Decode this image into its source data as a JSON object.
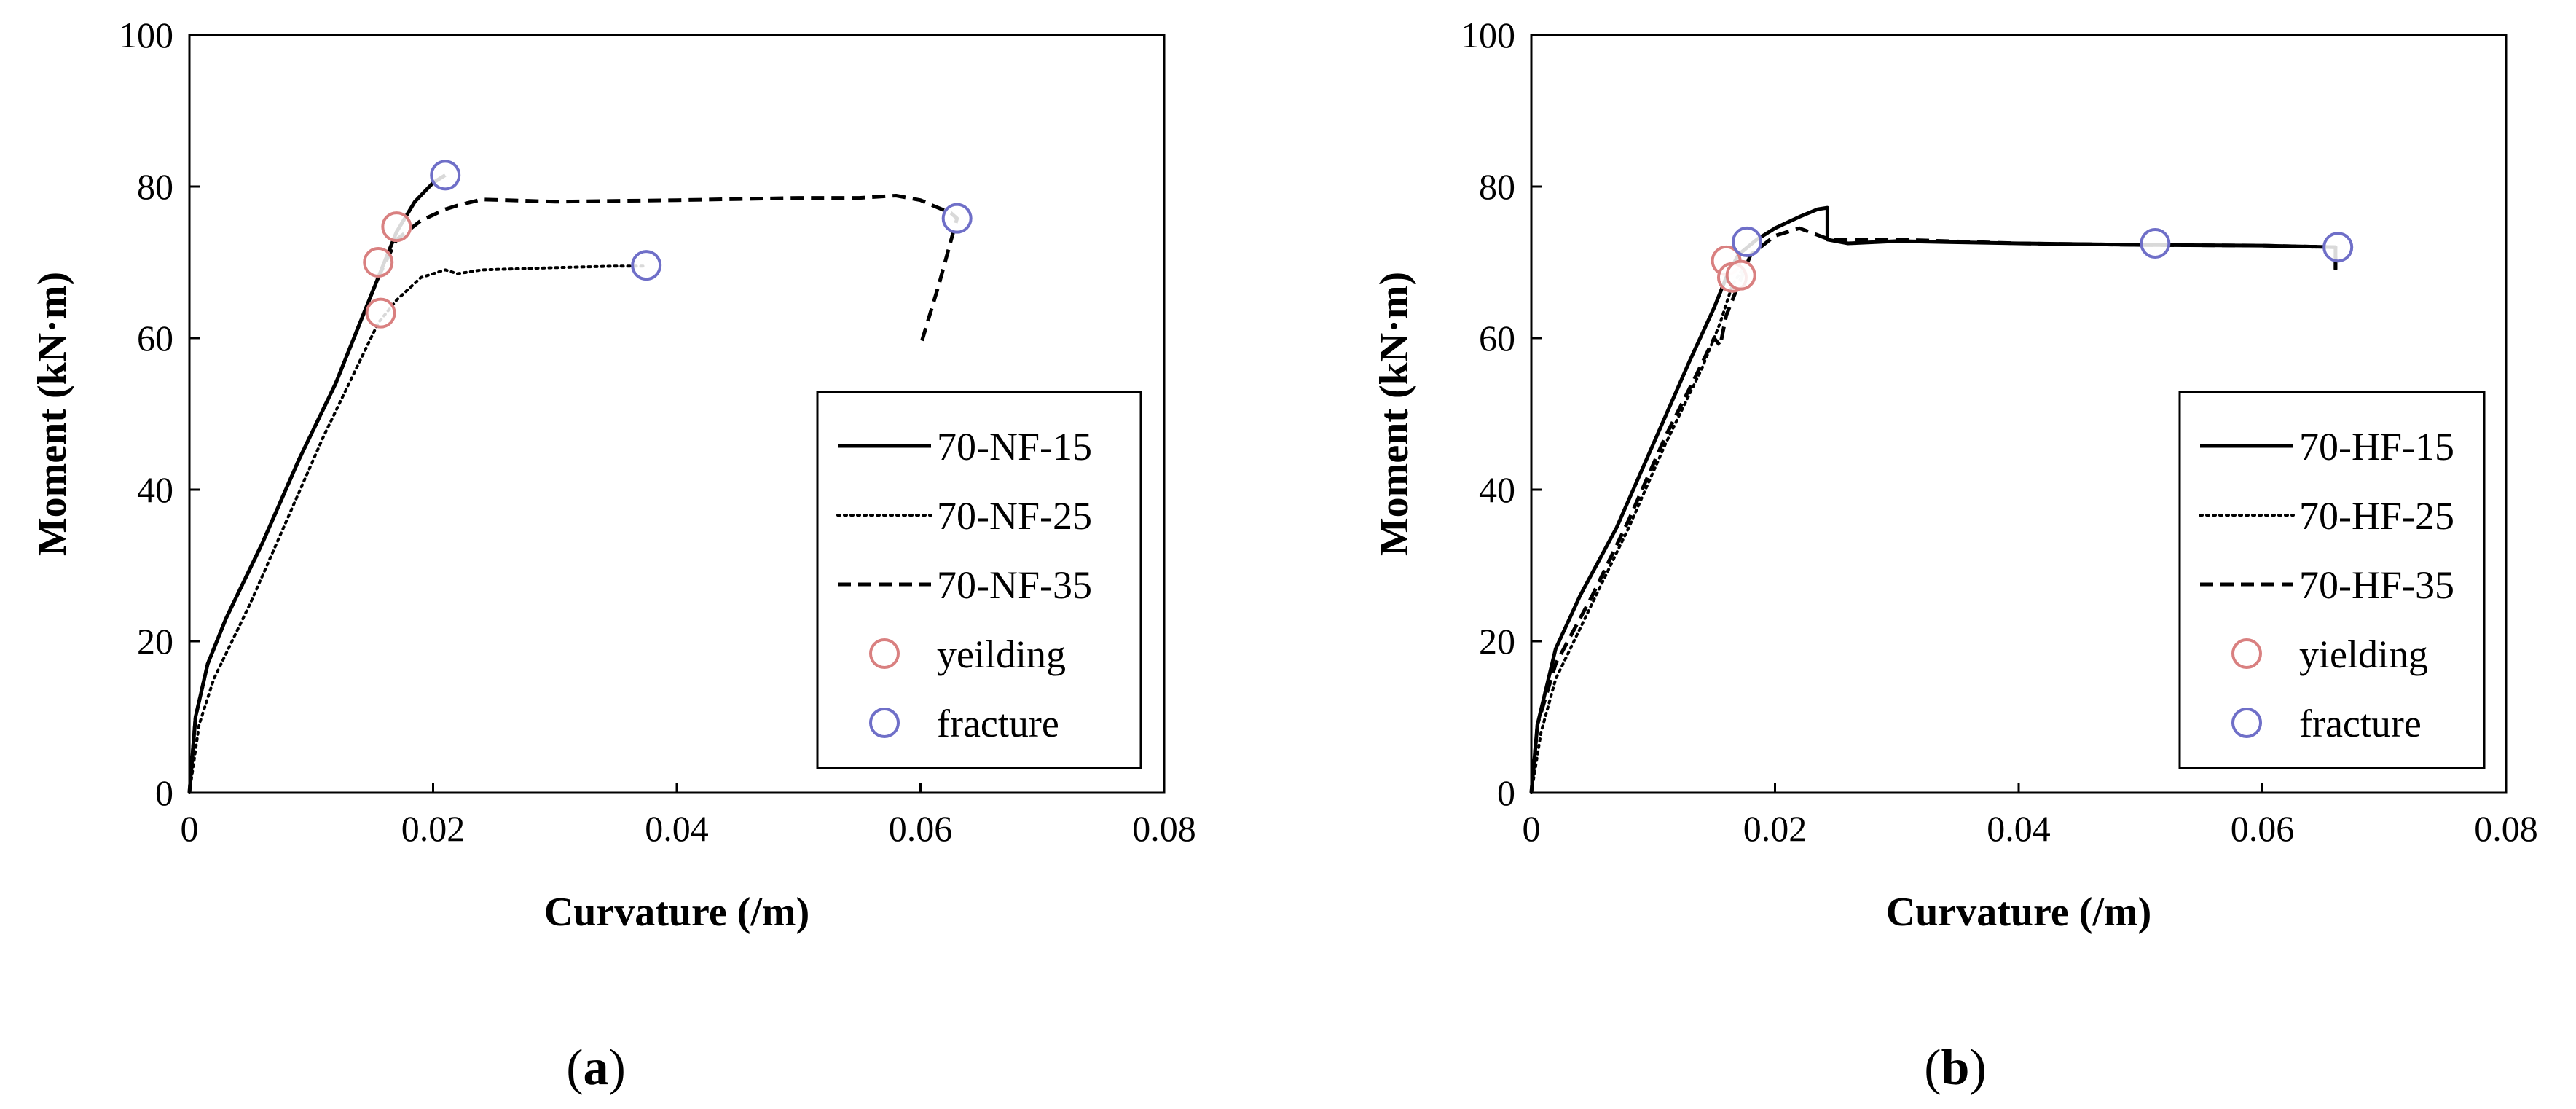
{
  "chart_data": [
    {
      "type": "line",
      "panel_label": "a",
      "xlabel": "Curvature (/m)",
      "ylabel": "Moment (kN·m)",
      "xlim": [
        0,
        0.08
      ],
      "ylim": [
        0,
        100
      ],
      "xticks": [
        0,
        0.02,
        0.04,
        0.06,
        0.08
      ],
      "xtick_labels": [
        "0",
        "0.02",
        "0.04",
        "0.06",
        "0.08"
      ],
      "yticks": [
        0,
        20,
        40,
        60,
        80,
        100
      ],
      "ytick_labels": [
        "0",
        "20",
        "40",
        "60",
        "80",
        "100"
      ],
      "grid": false,
      "legend_position": "bottom-right",
      "series": [
        {
          "name": "70-NF-15",
          "style": "solid",
          "points": [
            [
              0,
              0
            ],
            [
              0.0005,
              10
            ],
            [
              0.0015,
              17
            ],
            [
              0.003,
              23
            ],
            [
              0.006,
              33
            ],
            [
              0.009,
              44
            ],
            [
              0.012,
              54
            ],
            [
              0.014,
              62
            ],
            [
              0.0155,
              68
            ],
            [
              0.017,
              74
            ],
            [
              0.0185,
              78
            ],
            [
              0.02,
              80.5
            ],
            [
              0.021,
              81.5
            ]
          ]
        },
        {
          "name": "70-NF-25",
          "style": "dotted",
          "points": [
            [
              0,
              0
            ],
            [
              0.0008,
              9
            ],
            [
              0.002,
              15
            ],
            [
              0.005,
              25
            ],
            [
              0.008,
              36
            ],
            [
              0.011,
              47
            ],
            [
              0.014,
              57
            ],
            [
              0.0155,
              62
            ],
            [
              0.017,
              65
            ],
            [
              0.019,
              68
            ],
            [
              0.021,
              69
            ],
            [
              0.022,
              68.5
            ],
            [
              0.024,
              69
            ],
            [
              0.03,
              69.3
            ],
            [
              0.035,
              69.5
            ],
            [
              0.0375,
              69.5
            ]
          ]
        },
        {
          "name": "70-NF-35",
          "style": "dashed",
          "points": [
            [
              0,
              0
            ],
            [
              0.0005,
              10
            ],
            [
              0.0015,
              17
            ],
            [
              0.003,
              23
            ],
            [
              0.006,
              33
            ],
            [
              0.009,
              44
            ],
            [
              0.012,
              54
            ],
            [
              0.014,
              62
            ],
            [
              0.0155,
              68
            ],
            [
              0.017,
              73
            ],
            [
              0.019,
              75.5
            ],
            [
              0.021,
              77
            ],
            [
              0.022,
              77.5
            ],
            [
              0.024,
              78.3
            ],
            [
              0.03,
              78
            ],
            [
              0.04,
              78.2
            ],
            [
              0.05,
              78.5
            ],
            [
              0.055,
              78.5
            ],
            [
              0.058,
              78.8
            ],
            [
              0.06,
              78.2
            ],
            [
              0.061,
              77.5
            ],
            [
              0.0625,
              76.5
            ],
            [
              0.063,
              75.8
            ],
            [
              0.0615,
              67
            ],
            [
              0.06,
              59
            ]
          ]
        }
      ],
      "markers": [
        {
          "type": "yielding",
          "points": [
            [
              0.0155,
              70
            ],
            [
              0.017,
              74.7
            ],
            [
              0.0157,
              63.3
            ]
          ]
        },
        {
          "type": "fracture",
          "points": [
            [
              0.021,
              81.5
            ],
            [
              0.0375,
              69.6
            ],
            [
              0.063,
              75.8
            ]
          ]
        }
      ],
      "legend": [
        {
          "label": "70-NF-15",
          "kind": "line",
          "style": "solid"
        },
        {
          "label": "70-NF-25",
          "kind": "line",
          "style": "dotted"
        },
        {
          "label": "70-NF-35",
          "kind": "line",
          "style": "dashed"
        },
        {
          "label": "yeilding",
          "kind": "marker",
          "color": "#d98080"
        },
        {
          "label": "fracture",
          "kind": "marker",
          "color": "#6f6fc8"
        }
      ]
    },
    {
      "type": "line",
      "panel_label": "b",
      "xlabel": "Curvature (/m)",
      "ylabel": "Moment (kN·m)",
      "xlim": [
        0,
        0.08
      ],
      "ylim": [
        0,
        100
      ],
      "xticks": [
        0,
        0.02,
        0.04,
        0.06,
        0.08
      ],
      "xtick_labels": [
        "0",
        "0.02",
        "0.04",
        "0.06",
        "0.08"
      ],
      "yticks": [
        0,
        20,
        40,
        60,
        80,
        100
      ],
      "ytick_labels": [
        "0",
        "20",
        "40",
        "60",
        "80",
        "100"
      ],
      "grid": false,
      "legend_position": "bottom-right",
      "series": [
        {
          "name": "70-HF-15",
          "style": "solid",
          "points": [
            [
              0,
              0
            ],
            [
              0.0005,
              9
            ],
            [
              0.002,
              19
            ],
            [
              0.004,
              26
            ],
            [
              0.007,
              35
            ],
            [
              0.01,
              46
            ],
            [
              0.013,
              57
            ],
            [
              0.015,
              64
            ],
            [
              0.016,
              68
            ],
            [
              0.017,
              71
            ],
            [
              0.0185,
              73
            ],
            [
              0.02,
              74.5
            ],
            [
              0.022,
              76
            ],
            [
              0.0235,
              77
            ],
            [
              0.0243,
              77.2
            ],
            [
              0.0243,
              73
            ],
            [
              0.026,
              72.5
            ],
            [
              0.03,
              72.8
            ],
            [
              0.04,
              72.5
            ],
            [
              0.05,
              72.3
            ],
            [
              0.06,
              72.2
            ],
            [
              0.066,
              72
            ],
            [
              0.066,
              69
            ]
          ]
        },
        {
          "name": "70-HF-25",
          "style": "dotted",
          "points": [
            [
              0,
              0
            ],
            [
              0.0008,
              8
            ],
            [
              0.002,
              15
            ],
            [
              0.005,
              25
            ],
            [
              0.008,
              35
            ],
            [
              0.011,
              46
            ],
            [
              0.014,
              56
            ],
            [
              0.0155,
              62
            ],
            [
              0.0165,
              67
            ],
            [
              0.0173,
              69
            ]
          ]
        },
        {
          "name": "70-HF-35",
          "style": "dashed",
          "points": [
            [
              0,
              0
            ],
            [
              0.0005,
              9
            ],
            [
              0.002,
              17
            ],
            [
              0.005,
              26
            ],
            [
              0.008,
              36
            ],
            [
              0.011,
              47
            ],
            [
              0.0135,
              55
            ],
            [
              0.015,
              60
            ],
            [
              0.0155,
              59
            ],
            [
              0.016,
              63
            ],
            [
              0.017,
              67
            ],
            [
              0.018,
              71
            ],
            [
              0.02,
              73.5
            ],
            [
              0.022,
              74.5
            ],
            [
              0.0245,
              73
            ],
            [
              0.03,
              73
            ],
            [
              0.04,
              72.5
            ],
            [
              0.05,
              72.3
            ],
            [
              0.06,
              72.2
            ],
            [
              0.066,
              72
            ],
            [
              0.066,
              69
            ]
          ]
        }
      ],
      "markers": [
        {
          "type": "yielding",
          "points": [
            [
              0.016,
              70.2
            ],
            [
              0.0165,
              68
            ],
            [
              0.0172,
              68.3
            ]
          ]
        },
        {
          "type": "fracture",
          "points": [
            [
              0.0177,
              72.7
            ],
            [
              0.0512,
              72.5
            ],
            [
              0.0662,
              72
            ]
          ]
        }
      ],
      "legend": [
        {
          "label": "70-HF-15",
          "kind": "line",
          "style": "solid"
        },
        {
          "label": "70-HF-25",
          "kind": "line",
          "style": "dotted"
        },
        {
          "label": "70-HF-35",
          "kind": "line",
          "style": "dashed"
        },
        {
          "label": "yielding",
          "kind": "marker",
          "color": "#d98080"
        },
        {
          "label": "fracture",
          "kind": "marker",
          "color": "#6f6fc8"
        }
      ]
    }
  ],
  "colors": {
    "line": "#000000",
    "yielding": "#d98080",
    "fracture": "#6f6fc8"
  }
}
